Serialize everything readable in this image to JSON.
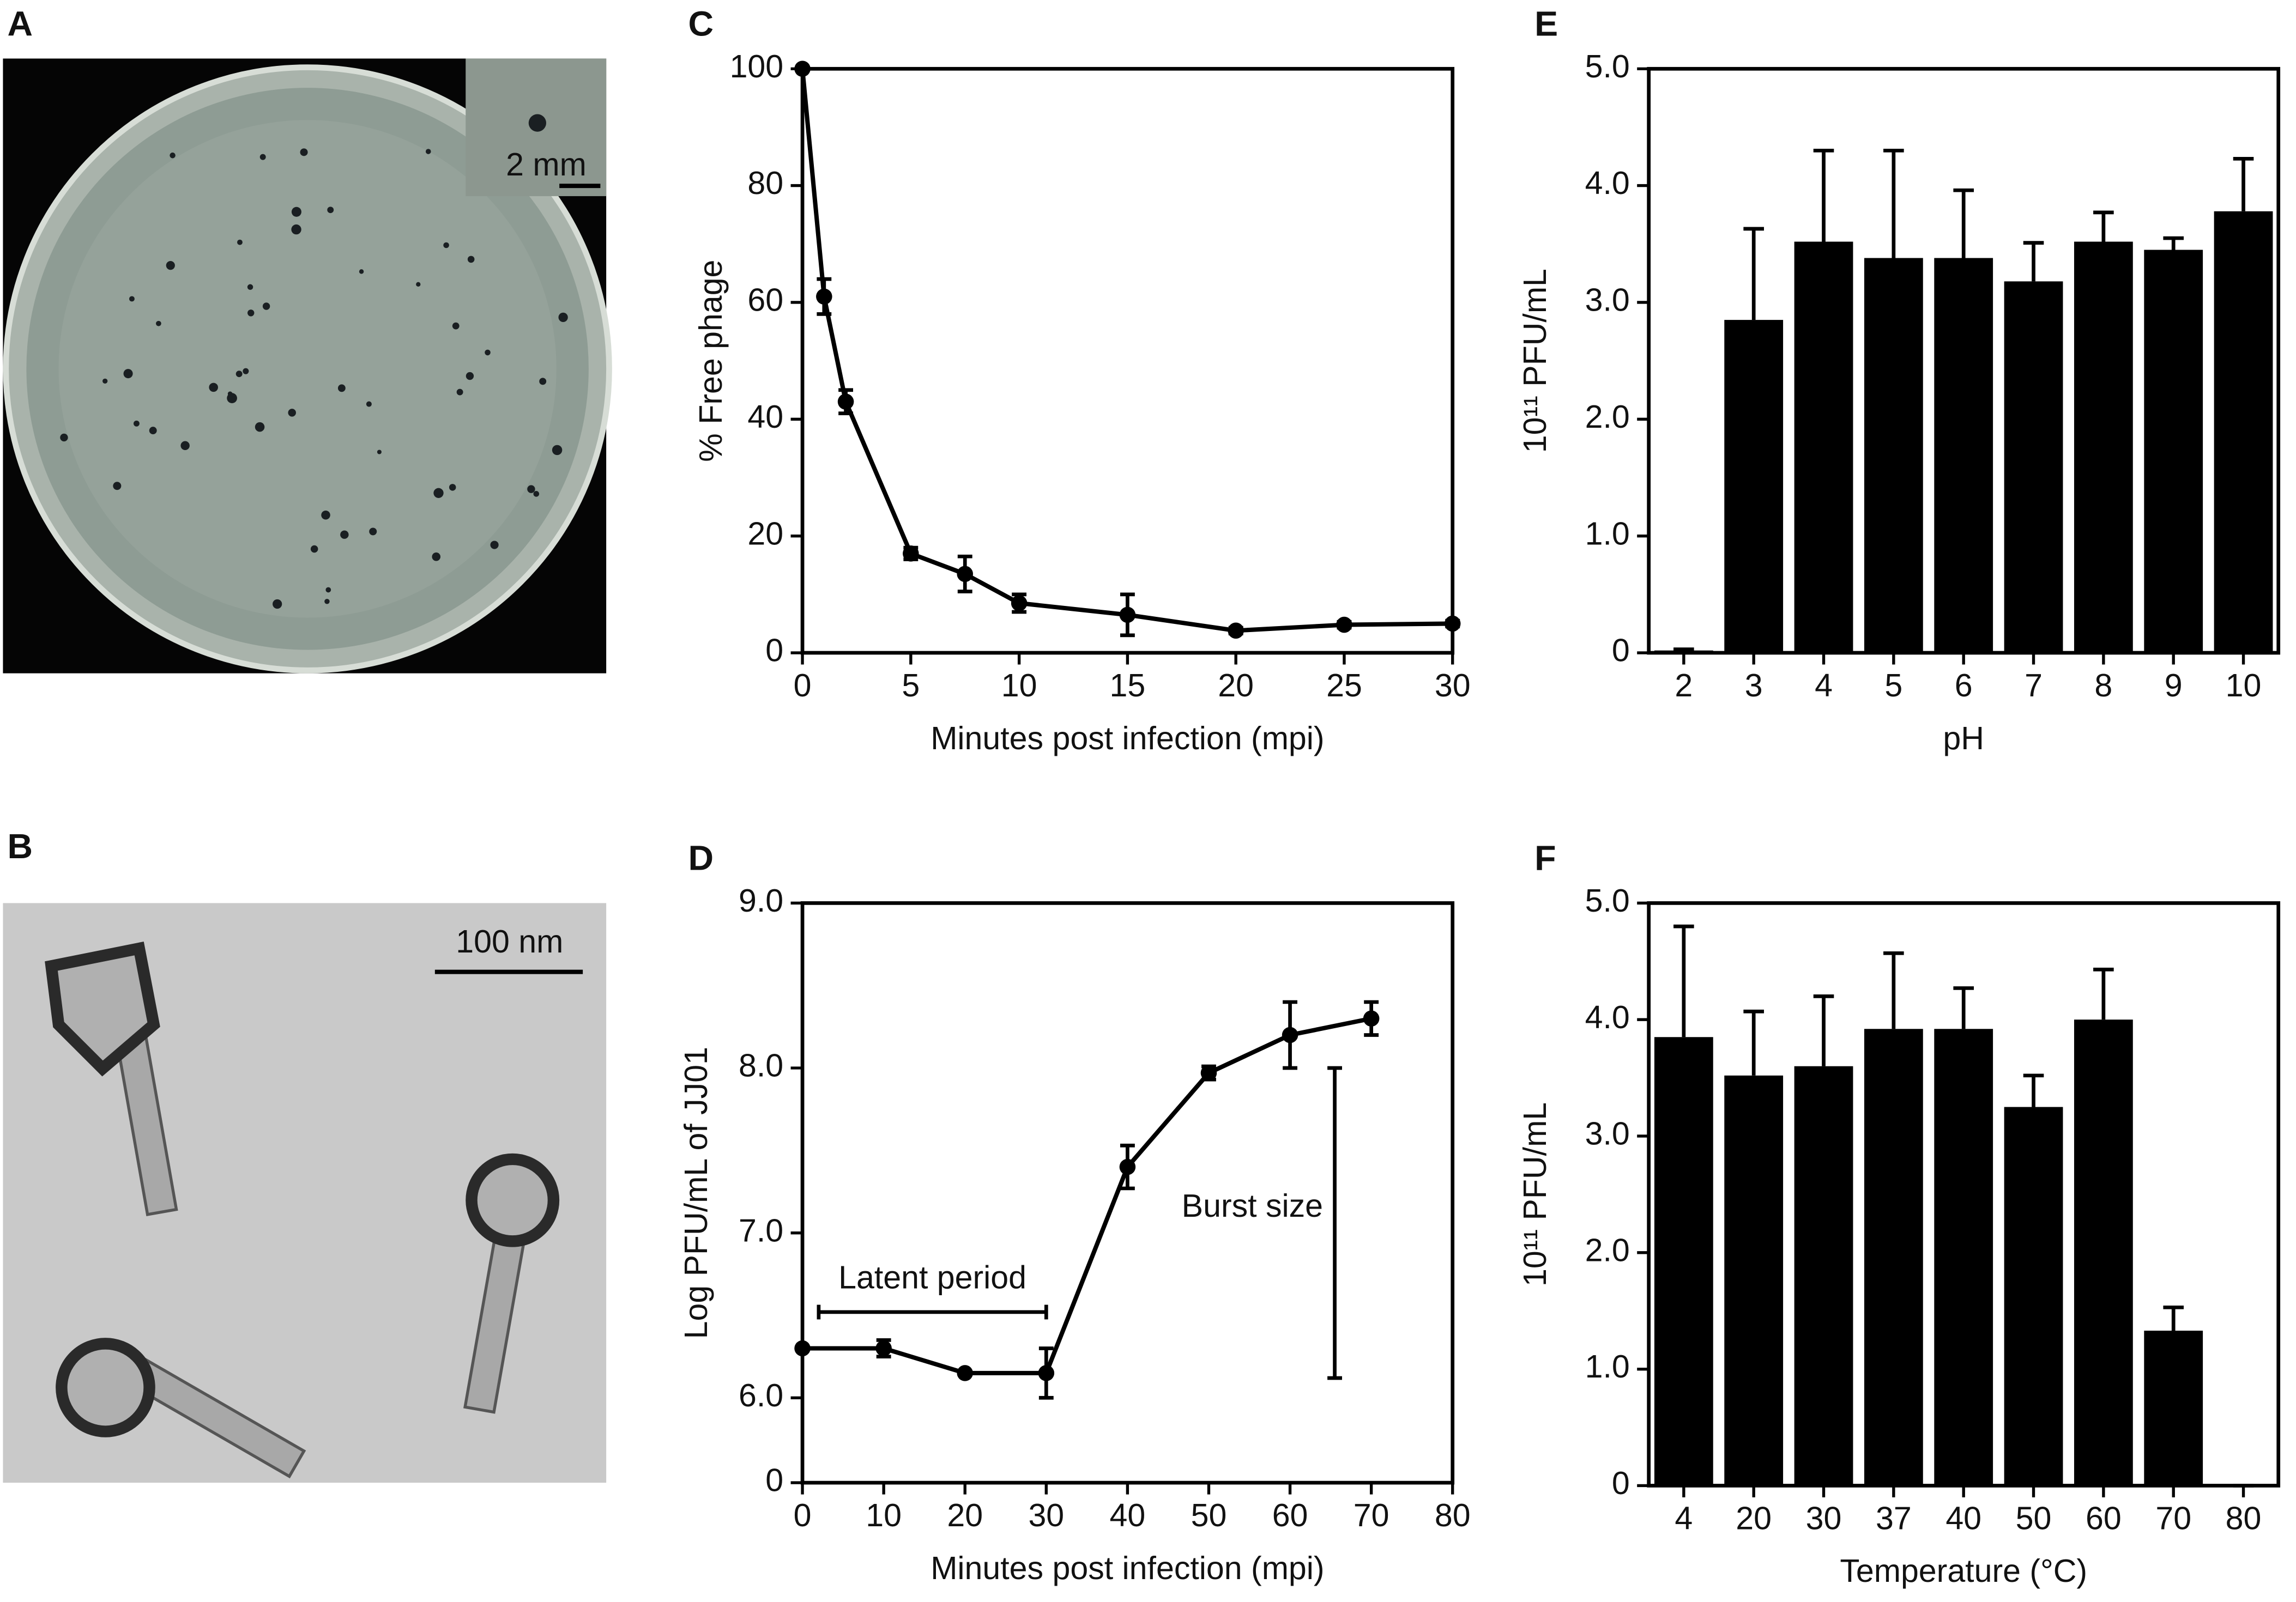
{
  "panels": [
    {
      "label": "A",
      "scale_label": "2 mm"
    },
    {
      "label": "B",
      "scale_label": "100 nm"
    }
  ],
  "chart_data": [
    {
      "type": "line",
      "label": "C",
      "xlabel": "Minutes post infection (mpi)",
      "ylabel": "% Free phage",
      "x": [
        0,
        1,
        2,
        5,
        7.5,
        10,
        15,
        20,
        25,
        30
      ],
      "values": [
        100,
        61,
        43,
        17,
        13.5,
        8.5,
        6.5,
        3.8,
        4.8,
        5
      ],
      "errors": [
        0,
        3,
        2,
        1,
        3,
        1.5,
        3.5,
        0.5,
        0.5,
        0.5
      ],
      "color": "#000000",
      "xlim": [
        0,
        30
      ],
      "xticks": [
        0,
        5,
        10,
        15,
        20,
        25,
        30
      ],
      "ylim": [
        0,
        100
      ],
      "yticks": [
        0,
        20,
        40,
        60,
        80,
        100
      ]
    },
    {
      "type": "line",
      "label": "D",
      "xlabel": "Minutes post infection (mpi)",
      "ylabel": "Log PFU/mL of JJ01",
      "x": [
        0,
        10,
        20,
        30,
        40,
        50,
        60,
        70
      ],
      "values": [
        6.3,
        6.3,
        6.15,
        6.15,
        7.4,
        7.97,
        8.2,
        8.3
      ],
      "errors": [
        0,
        0.05,
        0,
        0.15,
        0.13,
        0.04,
        0.2,
        0.1
      ],
      "color": "#000000",
      "xlim": [
        0,
        80
      ],
      "xticks": [
        0,
        10,
        20,
        30,
        40,
        50,
        60,
        70,
        80
      ],
      "ylim": [
        0,
        9
      ],
      "y_break": [
        0,
        6
      ],
      "yticks": [
        0,
        {
          "value": 6,
          "label": "6.0"
        },
        {
          "value": 7,
          "label": "7.0"
        },
        {
          "value": 8,
          "label": "8.0"
        },
        {
          "value": 9,
          "label": "9.0"
        }
      ],
      "annotations": [
        {
          "text": "Latent period",
          "x": [
            2,
            30
          ],
          "y": 6.52
        },
        {
          "text": "Burst size",
          "x": 65.5,
          "y": [
            6.12,
            8.0
          ]
        }
      ]
    },
    {
      "type": "bar",
      "label": "E",
      "xlabel": "pH",
      "ylabel": "10¹¹ PFU/mL",
      "categories": [
        "2",
        "3",
        "4",
        "5",
        "6",
        "7",
        "8",
        "9",
        "10"
      ],
      "values": [
        0.02,
        2.85,
        3.52,
        3.38,
        3.38,
        3.18,
        3.52,
        3.45,
        3.78
      ],
      "errors": [
        0.01,
        0.78,
        0.78,
        0.92,
        0.58,
        0.33,
        0.25,
        0.1,
        0.45
      ],
      "color": "#000000",
      "ylim": [
        0,
        5
      ],
      "yticks": [
        0,
        {
          "value": 1,
          "label": "1.0"
        },
        {
          "value": 2,
          "label": "2.0"
        },
        {
          "value": 3,
          "label": "3.0"
        },
        {
          "value": 4,
          "label": "4.0"
        },
        {
          "value": 5,
          "label": "5.0"
        }
      ]
    },
    {
      "type": "bar",
      "label": "F",
      "xlabel": "Temperature (°C)",
      "ylabel": "10¹¹ PFU/mL",
      "categories": [
        "4",
        "20",
        "30",
        "37",
        "40",
        "50",
        "60",
        "70",
        "80"
      ],
      "values": [
        3.85,
        3.52,
        3.6,
        3.92,
        3.92,
        3.25,
        4.0,
        1.33,
        0
      ],
      "errors": [
        0.95,
        0.55,
        0.6,
        0.65,
        0.35,
        0.27,
        0.43,
        0.2,
        0
      ],
      "color": "#000000",
      "ylim": [
        0,
        5
      ],
      "yticks": [
        0,
        {
          "value": 1,
          "label": "1.0"
        },
        {
          "value": 2,
          "label": "2.0"
        },
        {
          "value": 3,
          "label": "3.0"
        },
        {
          "value": 4,
          "label": "4.0"
        },
        {
          "value": 5,
          "label": "5.0"
        }
      ]
    }
  ]
}
